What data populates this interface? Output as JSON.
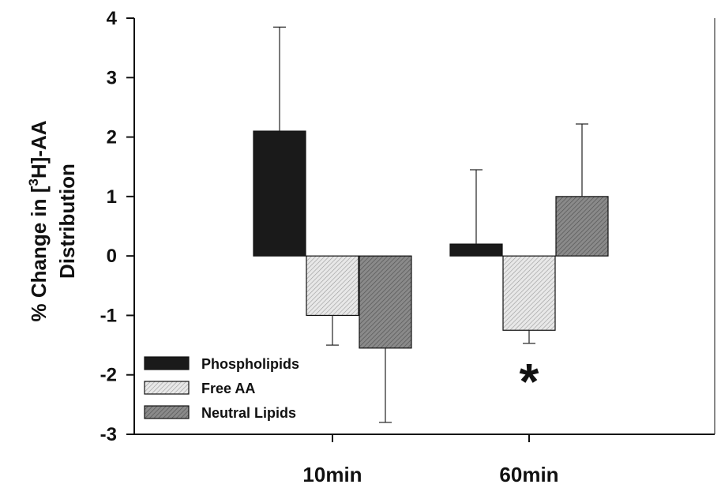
{
  "chart_data": {
    "type": "bar",
    "categories": [
      "10min",
      "60min"
    ],
    "series": [
      {
        "name": "Phospholipids",
        "values": [
          2.1,
          0.2
        ],
        "errors": [
          1.75,
          1.25
        ],
        "color": "#1a1a1a",
        "pattern": "solid"
      },
      {
        "name": "Free AA",
        "values": [
          -1.0,
          -1.25
        ],
        "errors": [
          0.5,
          0.22
        ],
        "color": "#d9d9d9",
        "pattern": "hatch-light"
      },
      {
        "name": "Neutral Lipids",
        "values": [
          -1.55,
          1.0
        ],
        "errors": [
          1.25,
          1.22
        ],
        "color": "#7a7a7a",
        "pattern": "hatch-dark"
      }
    ],
    "ylabel_line1": "% Change in [3H]-AA",
    "ylabel_line2": "Distribution",
    "ylabel_parts": {
      "prefix": "% Change in [",
      "sup": "3",
      "suffix": "H]-AA"
    },
    "xlabel": "",
    "ylim": [
      -3,
      4
    ],
    "yticks": [
      "4",
      "3",
      "2",
      "1",
      "0",
      "-1",
      "-2",
      "-3"
    ],
    "grid": false,
    "legend_position": "bottom-left",
    "annotations": [
      {
        "text": "*",
        "category": "60min",
        "series": "Free AA"
      }
    ]
  }
}
